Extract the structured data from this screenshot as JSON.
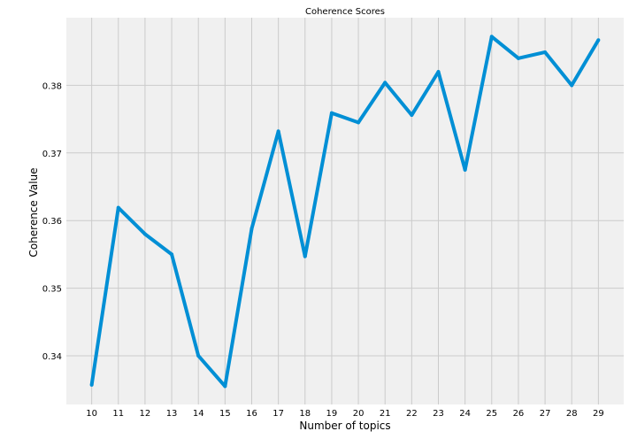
{
  "chart_data": {
    "type": "line",
    "title": "Coherence Scores",
    "xlabel": "Number of topics",
    "ylabel": "Coherence Value",
    "x": [
      10,
      11,
      12,
      13,
      14,
      15,
      16,
      17,
      18,
      19,
      20,
      21,
      22,
      23,
      24,
      25,
      26,
      27,
      28,
      29
    ],
    "series": [
      {
        "values": [
          0.3357,
          0.3619,
          0.358,
          0.355,
          0.34,
          0.3355,
          0.3588,
          0.3732,
          0.3547,
          0.3759,
          0.3745,
          0.3804,
          0.3756,
          0.382,
          0.3675,
          0.3872,
          0.384,
          0.3849,
          0.38,
          0.3867
        ],
        "color": "#008fd5"
      }
    ],
    "yticks": [
      "0.34",
      "0.35",
      "0.36",
      "0.37",
      "0.38"
    ],
    "ytick_values": [
      0.34,
      0.35,
      0.36,
      0.37,
      0.38
    ],
    "xticks": [
      "10",
      "11",
      "12",
      "13",
      "14",
      "15",
      "16",
      "17",
      "18",
      "19",
      "20",
      "21",
      "22",
      "23",
      "24",
      "25",
      "26",
      "27",
      "28",
      "29"
    ],
    "xlim": [
      9.05,
      29.95
    ],
    "ylim": [
      0.3328,
      0.39
    ],
    "grid": true,
    "background": "#f0f0f0",
    "grid_color": "#cbcbcb"
  }
}
